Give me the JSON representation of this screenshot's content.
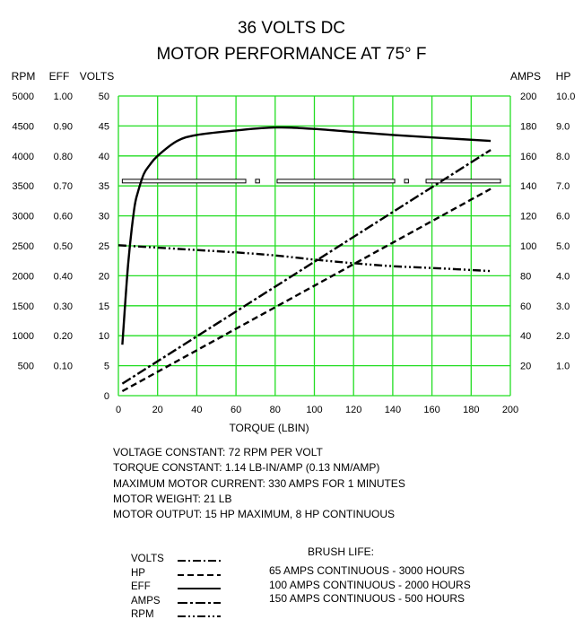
{
  "chart_data": {
    "type": "line",
    "title": "36 VOLTS DC",
    "subtitle": "MOTOR PERFORMANCE AT 75° F",
    "xlabel": "TORQUE (LBIN)",
    "xlim": [
      0,
      200
    ],
    "x_ticks": [
      "0",
      "20",
      "40",
      "60",
      "80",
      "100",
      "120",
      "140",
      "160",
      "180",
      "200"
    ],
    "grid": true,
    "grid_color": "#22dd22",
    "left_axes": [
      {
        "label": "RPM",
        "ticks": [
          "500",
          "1000",
          "1500",
          "2000",
          "2500",
          "3000",
          "3500",
          "4000",
          "4500",
          "5000"
        ]
      },
      {
        "label": "EFF",
        "ticks": [
          "0.10",
          "0.20",
          "0.30",
          "0.40",
          "0.50",
          "0.60",
          "0.70",
          "0.80",
          "0.90",
          "1.00"
        ]
      },
      {
        "label": "VOLTS",
        "ticks": [
          "0",
          "5",
          "10",
          "15",
          "20",
          "25",
          "30",
          "35",
          "40",
          "45",
          "50"
        ]
      }
    ],
    "right_axes": [
      {
        "label": "AMPS",
        "ticks": [
          "20",
          "40",
          "60",
          "80",
          "100",
          "120",
          "140",
          "160",
          "180",
          "200"
        ]
      },
      {
        "label": "HP",
        "ticks": [
          "1.0",
          "2.0",
          "3.0",
          "4.0",
          "5.0",
          "6.0",
          "7.0",
          "8.0",
          "9.0",
          "10.0"
        ]
      }
    ],
    "series": [
      {
        "name": "VOLTS",
        "axis": "VOLTS",
        "x": [
          2,
          35,
          70,
          110,
          150,
          190
        ],
        "y": [
          35.8,
          35.8,
          35.8,
          35.8,
          35.8,
          35.8
        ]
      },
      {
        "name": "HP",
        "axis": "HP",
        "x": [
          2,
          190
        ],
        "y": [
          0.15,
          6.9
        ]
      },
      {
        "name": "EFF",
        "axis": "EFF",
        "x": [
          2,
          5,
          8,
          10,
          13,
          16,
          20,
          30,
          40,
          60,
          80,
          100,
          140,
          190
        ],
        "y": [
          0.17,
          0.44,
          0.62,
          0.68,
          0.74,
          0.77,
          0.8,
          0.85,
          0.87,
          0.885,
          0.895,
          0.89,
          0.87,
          0.85
        ]
      },
      {
        "name": "AMPS",
        "axis": "AMPS",
        "x": [
          2,
          190
        ],
        "y": [
          8,
          164
        ]
      },
      {
        "name": "RPM",
        "axis": "RPM",
        "x": [
          0,
          20,
          40,
          60,
          80,
          100,
          120,
          140,
          160,
          190
        ],
        "y": [
          2510,
          2470,
          2430,
          2390,
          2340,
          2270,
          2210,
          2160,
          2130,
          2080
        ]
      }
    ]
  },
  "specs": [
    "VOLTAGE CONSTANT: 72 RPM PER VOLT",
    "TORQUE CONSTANT: 1.14 LB-IN/AMP (0.13 NM/AMP)",
    "MAXIMUM MOTOR CURRENT: 330 AMPS FOR 1 MINUTES",
    "MOTOR WEIGHT: 21 LB",
    "MOTOR OUTPUT: 15 HP MAXIMUM, 8 HP CONTINUOUS"
  ],
  "legend": [
    {
      "name": "VOLTS",
      "dash": "9 3 2 3"
    },
    {
      "name": "HP",
      "dash": "7 4"
    },
    {
      "name": "EFF",
      "dash": ""
    },
    {
      "name": "AMPS",
      "dash": "11 3 3 3"
    },
    {
      "name": "RPM",
      "dash": "9 3 2 3 2 3"
    }
  ],
  "brush_life": {
    "title": "BRUSH LIFE:",
    "items": [
      "65 AMPS CONTINUOUS  - 3000 HOURS",
      "100 AMPS CONTINUOUS  - 2000 HOURS",
      "150 AMPS CONTINUOUS  - 500 HOURS"
    ]
  }
}
